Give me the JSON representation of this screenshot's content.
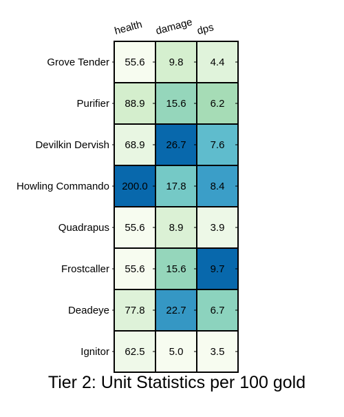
{
  "chart_data": {
    "type": "heatmap",
    "title": "Tier 2: Unit Statistics per 100 gold",
    "columns": [
      "health",
      "damage",
      "dps"
    ],
    "rows": [
      "Grove Tender",
      "Purifier",
      "Devilkin Dervish",
      "Howling Commando",
      "Quadrapus",
      "Frostcaller",
      "Deadeye",
      "Ignitor"
    ],
    "values": [
      [
        55.6,
        9.8,
        4.4
      ],
      [
        88.9,
        15.6,
        6.2
      ],
      [
        68.9,
        26.7,
        7.6
      ],
      [
        200.0,
        17.8,
        8.4
      ],
      [
        55.6,
        8.9,
        3.9
      ],
      [
        55.6,
        15.6,
        9.7
      ],
      [
        77.8,
        22.7,
        6.7
      ],
      [
        62.5,
        5.0,
        3.5
      ]
    ],
    "value_labels": [
      [
        "55.6",
        "9.8",
        "4.4"
      ],
      [
        "88.9",
        "15.6",
        "6.2"
      ],
      [
        "68.9",
        "26.7",
        "7.6"
      ],
      [
        "200.0",
        "17.8",
        "8.4"
      ],
      [
        "55.6",
        "8.9",
        "3.9"
      ],
      [
        "55.6",
        "15.6",
        "9.7"
      ],
      [
        "77.8",
        "22.7",
        "6.7"
      ],
      [
        "62.5",
        "5.0",
        "3.5"
      ]
    ],
    "colormap": [
      "#f7fcf0",
      "#e0f3db",
      "#ccebc5",
      "#a8ddb5",
      "#7bccc4",
      "#4eb3d3",
      "#2b8cbe",
      "#0868ac"
    ],
    "color_scale": "per-column",
    "cell_border_color": "#000000",
    "grid": false
  }
}
